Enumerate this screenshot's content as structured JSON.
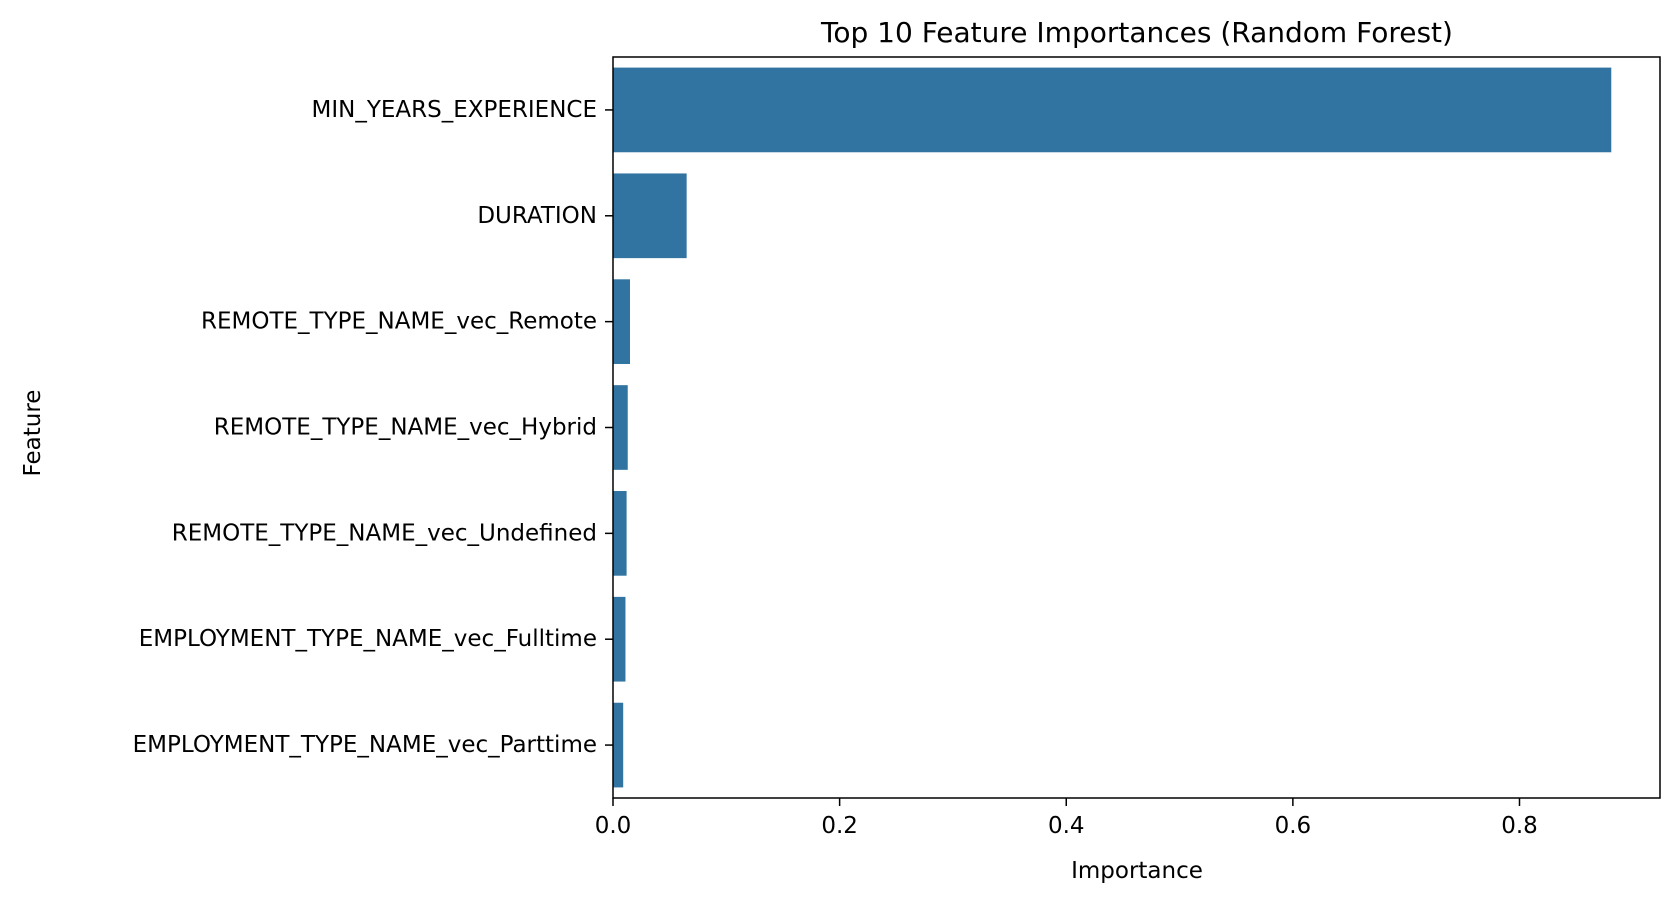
{
  "chart_data": {
    "type": "bar",
    "orientation": "horizontal",
    "title": "Top 10 Feature Importances (Random Forest)",
    "xlabel": "Importance",
    "ylabel": "Feature",
    "categories": [
      "MIN_YEARS_EXPERIENCE",
      "DURATION",
      "REMOTE_TYPE_NAME_vec_Remote",
      "REMOTE_TYPE_NAME_vec_Hybrid",
      "REMOTE_TYPE_NAME_vec_Undefined",
      "EMPLOYMENT_TYPE_NAME_vec_Fulltime",
      "EMPLOYMENT_TYPE_NAME_vec_Parttime"
    ],
    "values": [
      0.881,
      0.065,
      0.015,
      0.013,
      0.012,
      0.011,
      0.009
    ],
    "xlim": [
      0,
      0.924
    ],
    "xticks": [
      0.0,
      0.2,
      0.4,
      0.6,
      0.8
    ],
    "xtick_labels": [
      "0.0",
      "0.2",
      "0.4",
      "0.6",
      "0.8"
    ],
    "grid": false,
    "legend": "none",
    "bar_color": "#3274a1"
  }
}
